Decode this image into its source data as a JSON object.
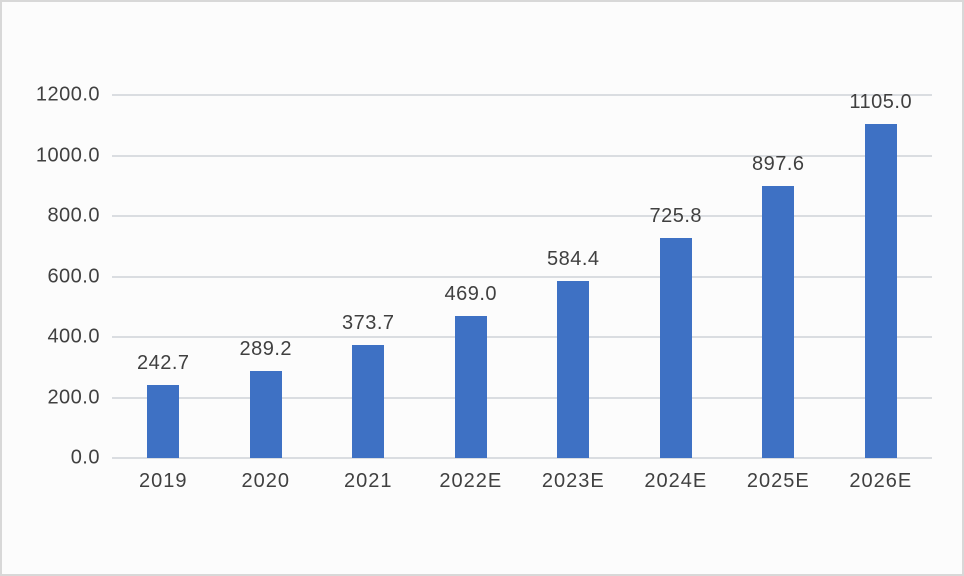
{
  "page": {
    "background": "#fcfcfc",
    "border_color": "#d8d8d8"
  },
  "chart_data": {
    "type": "bar",
    "title": "",
    "xlabel": "",
    "ylabel": "",
    "categories": [
      "2019",
      "2020",
      "2021",
      "2022E",
      "2023E",
      "2024E",
      "2025E",
      "2026E"
    ],
    "values": [
      242.7,
      289.2,
      373.7,
      469.0,
      584.4,
      725.8,
      897.6,
      1105.0
    ],
    "value_labels": [
      "242.7",
      "289.2",
      "373.7",
      "469.0",
      "584.4",
      "725.8",
      "897.6",
      "1105.0"
    ],
    "ylim": [
      0,
      1200
    ],
    "y_ticks": [
      0,
      200,
      400,
      600,
      800,
      1000,
      1200
    ],
    "y_tick_labels": [
      "0.0",
      "200.0",
      "400.0",
      "600.0",
      "800.0",
      "1000.0",
      "1200.0"
    ],
    "grid": true,
    "legend": false,
    "bar_color": "#3E71C4",
    "gridline_color": "#dadde1",
    "text_color": "#404040"
  }
}
